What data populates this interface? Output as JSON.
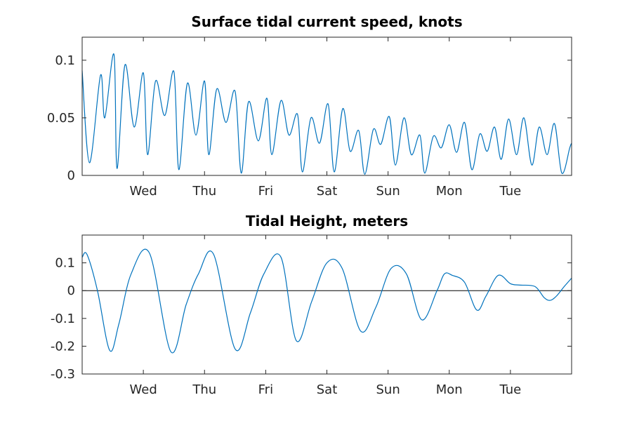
{
  "chart_data": [
    {
      "type": "line",
      "title": "Surface tidal current speed, knots",
      "xlabel": "",
      "ylabel": "",
      "xlim": [
        0,
        8
      ],
      "ylim": [
        0,
        0.12
      ],
      "xticks": [
        1,
        2,
        3,
        4,
        5,
        6,
        7
      ],
      "xtick_labels": [
        "Wed",
        "Thu",
        "Fri",
        "Sat",
        "Sun",
        "Mon",
        "Tue"
      ],
      "yticks": [
        0,
        0.05,
        0.1
      ],
      "ytick_labels": [
        "0",
        "0.05",
        "0.1"
      ],
      "grid": false,
      "color": "#0072BD",
      "series": [
        {
          "x": [
            0.0,
            0.12,
            0.3,
            0.37,
            0.52,
            0.57,
            0.7,
            0.85,
            1.0,
            1.07,
            1.2,
            1.35,
            1.5,
            1.58,
            1.72,
            1.86,
            2.0,
            2.07,
            2.2,
            2.35,
            2.5,
            2.6,
            2.72,
            2.88,
            3.02,
            3.1,
            3.25,
            3.38,
            3.52,
            3.6,
            3.74,
            3.88,
            4.02,
            4.12,
            4.26,
            4.38,
            4.52,
            4.62,
            4.76,
            4.88,
            5.02,
            5.12,
            5.26,
            5.38,
            5.52,
            5.6,
            5.74,
            5.87,
            6.0,
            6.12,
            6.25,
            6.37,
            6.5,
            6.62,
            6.74,
            6.85,
            6.97,
            7.1,
            7.22,
            7.35,
            7.47,
            7.6,
            7.72,
            7.84,
            7.97,
            8.0
          ],
          "y": [
            0.091,
            0.011,
            0.087,
            0.05,
            0.105,
            0.006,
            0.096,
            0.042,
            0.089,
            0.018,
            0.082,
            0.052,
            0.09,
            0.005,
            0.08,
            0.035,
            0.082,
            0.018,
            0.075,
            0.046,
            0.073,
            0.002,
            0.064,
            0.03,
            0.067,
            0.018,
            0.065,
            0.035,
            0.053,
            0.003,
            0.05,
            0.028,
            0.062,
            0.003,
            0.058,
            0.021,
            0.039,
            0.001,
            0.04,
            0.027,
            0.051,
            0.009,
            0.05,
            0.018,
            0.035,
            0.002,
            0.034,
            0.024,
            0.044,
            0.02,
            0.046,
            0.005,
            0.036,
            0.021,
            0.042,
            0.014,
            0.049,
            0.018,
            0.05,
            0.009,
            0.042,
            0.018,
            0.045,
            0.002,
            0.024,
            0.028
          ]
        }
      ]
    },
    {
      "type": "line",
      "title": "Tidal Height, meters",
      "xlabel": "",
      "ylabel": "",
      "xlim": [
        0,
        8
      ],
      "ylim": [
        -0.3,
        0.2
      ],
      "xticks": [
        1,
        2,
        3,
        4,
        5,
        6,
        7
      ],
      "xtick_labels": [
        "Wed",
        "Thu",
        "Fri",
        "Sat",
        "Sun",
        "Mon",
        "Tue"
      ],
      "yticks": [
        -0.3,
        -0.2,
        -0.1,
        0,
        0.1
      ],
      "ytick_labels": [
        "-0.3",
        "-0.2",
        "-0.1",
        "0",
        "0.1"
      ],
      "grid": false,
      "zero_line": true,
      "color": "#0072BD",
      "series": [
        {
          "x": [
            0.0,
            0.08,
            0.25,
            0.45,
            0.6,
            0.8,
            1.1,
            1.45,
            1.7,
            1.9,
            2.15,
            2.5,
            2.75,
            2.97,
            3.25,
            3.5,
            3.75,
            4.0,
            4.25,
            4.55,
            4.8,
            5.05,
            5.3,
            5.55,
            5.8,
            5.92,
            6.05,
            6.25,
            6.45,
            6.6,
            6.8,
            7.0,
            7.15,
            7.4,
            7.55,
            7.65,
            7.75,
            7.88,
            8.0
          ],
          "y": [
            0.12,
            0.13,
            0.0,
            -0.215,
            -0.12,
            0.06,
            0.135,
            -0.22,
            -0.05,
            0.06,
            0.13,
            -0.21,
            -0.08,
            0.06,
            0.12,
            -0.18,
            -0.04,
            0.1,
            0.08,
            -0.145,
            -0.06,
            0.08,
            0.06,
            -0.105,
            0.0,
            0.06,
            0.055,
            0.03,
            -0.07,
            -0.02,
            0.055,
            0.025,
            0.02,
            0.015,
            -0.025,
            -0.035,
            -0.02,
            0.015,
            0.045
          ]
        }
      ]
    }
  ]
}
